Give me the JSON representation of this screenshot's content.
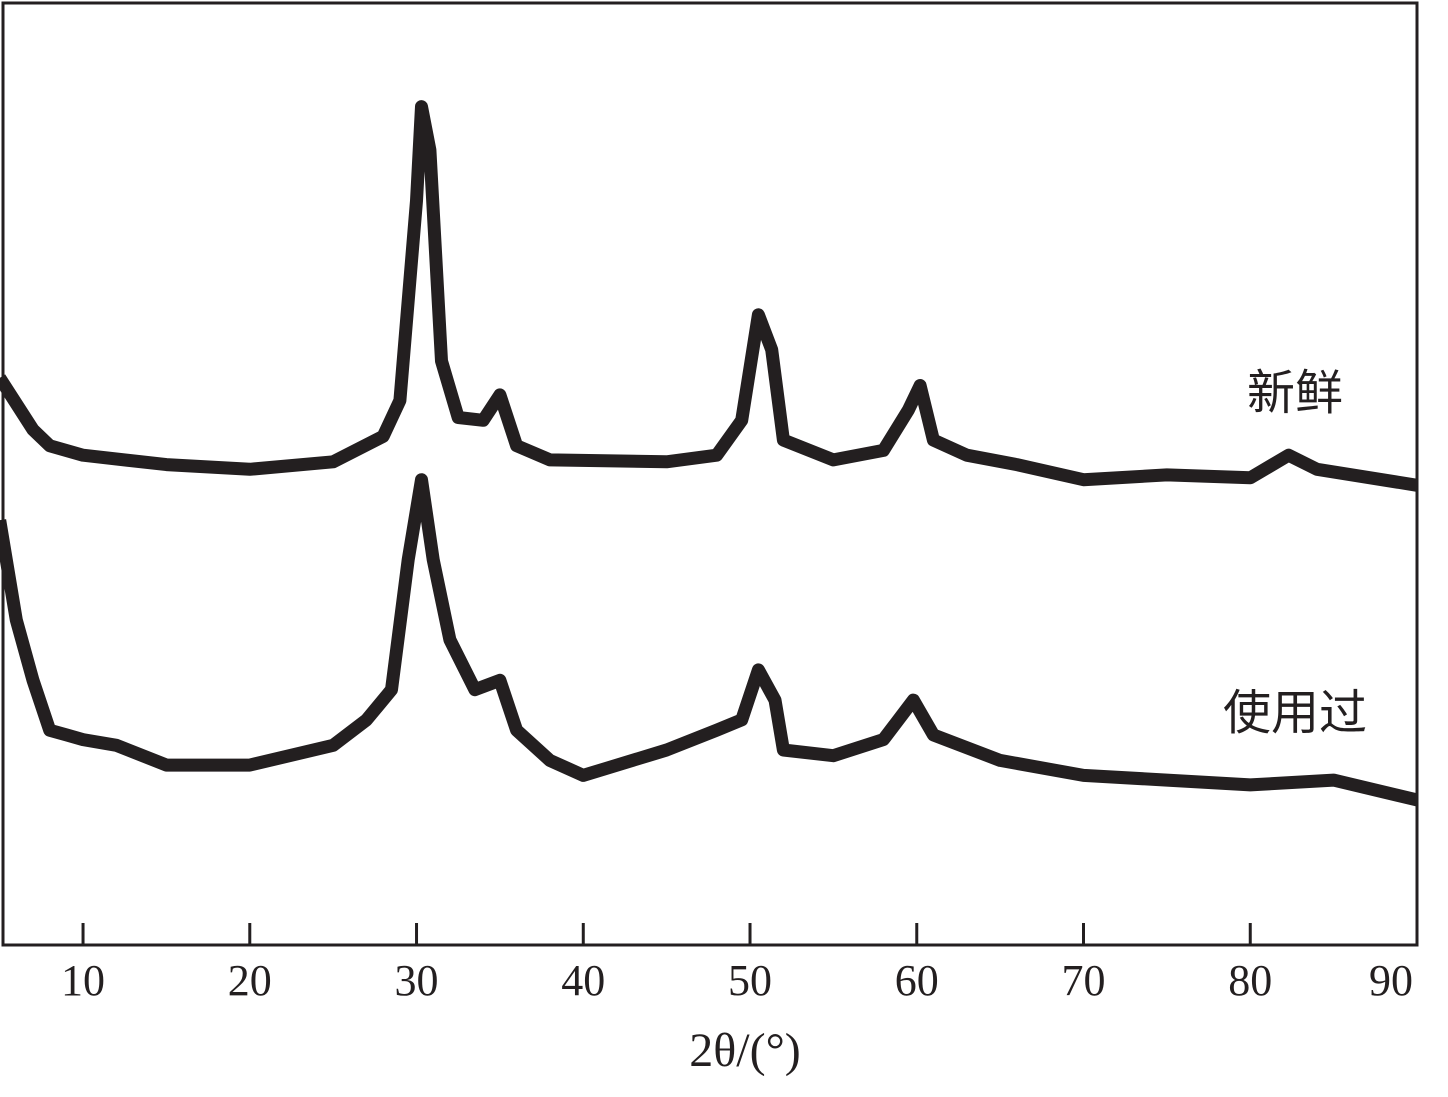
{
  "chart_data": {
    "type": "line",
    "x_label": "2θ/(°)",
    "xlim": [
      5.2,
      90
    ],
    "xticks": [
      10,
      20,
      30,
      40,
      50,
      60,
      70,
      80,
      90
    ],
    "ylim": [
      0,
      100
    ],
    "series": [
      {
        "name": "新鲜",
        "color": "#231f20",
        "x": [
          5,
          7,
          8,
          10,
          15,
          20,
          25,
          28,
          29,
          30,
          30.3,
          30.8,
          31.5,
          32.5,
          34,
          35,
          36,
          38,
          45,
          48,
          49.5,
          50.5,
          51.3,
          52,
          55,
          58,
          59.5,
          60.2,
          61,
          63,
          66,
          70,
          75,
          80,
          82.3,
          84,
          90
        ],
        "values": [
          60.2,
          54.7,
          53,
          52,
          51,
          50.5,
          51.3,
          54,
          57.8,
          79,
          89,
          84.4,
          62,
          56,
          55.7,
          58.4,
          53,
          51.5,
          51.3,
          52,
          55.7,
          66.9,
          63.2,
          53.6,
          51.5,
          52.5,
          56.8,
          59.4,
          53.6,
          52,
          51,
          49.4,
          49.9,
          49.6,
          52,
          50.5,
          48.8
        ]
      },
      {
        "name": "使用过",
        "color": "#231f20",
        "x": [
          5,
          6,
          7,
          8,
          9,
          10,
          12,
          15,
          20,
          25,
          27,
          28.5,
          29.5,
          30.3,
          31,
          32,
          33.5,
          35,
          36,
          38,
          40,
          45,
          48,
          49.5,
          50.5,
          51.5,
          52,
          55,
          58,
          59.8,
          61,
          65,
          70,
          75,
          80,
          85,
          90
        ],
        "values": [
          45.1,
          34.5,
          28.1,
          22.8,
          22.3,
          21.8,
          21.2,
          19.1,
          19.1,
          21.2,
          23.9,
          27.1,
          40.9,
          49.4,
          40.9,
          32.4,
          27.1,
          28.1,
          22.8,
          19.6,
          18,
          20.7,
          22.8,
          23.9,
          29.2,
          26,
          20.7,
          20.1,
          21.8,
          26,
          22.3,
          19.6,
          18,
          17.5,
          17,
          17.5,
          15.4
        ]
      }
    ]
  }
}
